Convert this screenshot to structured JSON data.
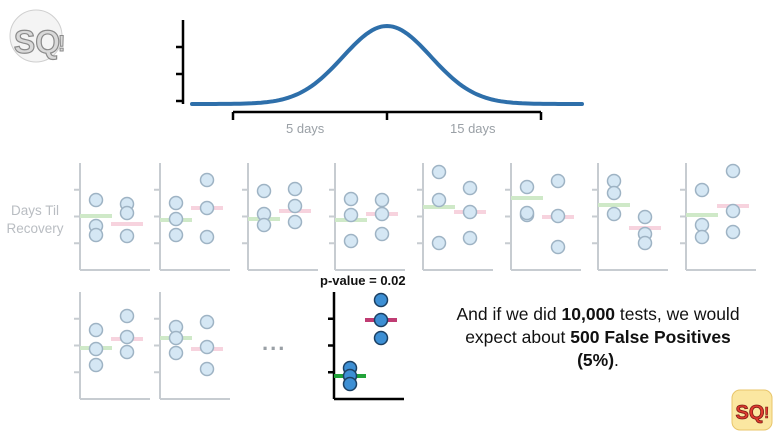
{
  "distribution": {
    "x_tick_labels": [
      "5 days",
      "15 days"
    ]
  },
  "y_axis_label_line1": "Days Til",
  "y_axis_label_line2": "Recovery",
  "ellipsis": "...",
  "highlight": {
    "label": "p-value = 0.02"
  },
  "conclusion": {
    "t1": "And if we did ",
    "b1": "10,000",
    "t2": " tests, we would expect about ",
    "b2": "500 False Positives (5%)",
    "t3": "."
  },
  "colors": {
    "curve": "#2e6faa",
    "dot_fill": "#d5e7f4",
    "dot_stroke": "#9eb3c4",
    "green_mean": "#cfe9c8",
    "pink_mean": "#f7d3de",
    "highlight_dot_fill": "#3d8fd4",
    "highlight_dot_stroke": "#1c4063",
    "highlight_green": "#22a33a",
    "highlight_pink": "#c03c73"
  },
  "logo": {
    "icon": "statquest-logo"
  }
}
